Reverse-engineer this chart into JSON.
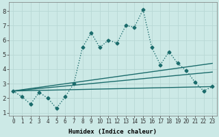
{
  "xlabel": "Humidex (Indice chaleur)",
  "ylabel": "",
  "xlim": [
    -0.5,
    23.5
  ],
  "ylim": [
    0.8,
    8.6
  ],
  "yticks": [
    1,
    2,
    3,
    4,
    5,
    6,
    7,
    8
  ],
  "xticks": [
    0,
    1,
    2,
    3,
    4,
    5,
    6,
    7,
    8,
    9,
    10,
    11,
    12,
    13,
    14,
    15,
    16,
    17,
    18,
    19,
    20,
    21,
    22,
    23
  ],
  "background_color": "#cce9e6",
  "line_color": "#1a6b6b",
  "grid_color": "#b8d8d5",
  "series": [
    {
      "x": [
        0,
        1,
        2,
        3,
        4,
        5,
        6,
        7,
        8,
        9,
        10,
        11,
        12,
        13,
        14,
        15,
        16,
        17,
        18,
        19,
        20,
        21,
        22,
        23
      ],
      "y": [
        2.5,
        2.1,
        1.6,
        2.4,
        2.0,
        1.3,
        2.1,
        3.0,
        5.5,
        6.5,
        5.5,
        6.0,
        5.8,
        7.0,
        6.9,
        8.1,
        5.5,
        4.3,
        5.2,
        4.4,
        3.9,
        3.1,
        2.5,
        2.8
      ],
      "style": "dotted",
      "marker": "D",
      "markersize": 2.5,
      "linewidth": 1.0
    },
    {
      "x": [
        0,
        23
      ],
      "y": [
        2.5,
        2.8
      ],
      "style": "solid",
      "marker": null,
      "markersize": 0,
      "linewidth": 1.0
    },
    {
      "x": [
        0,
        23
      ],
      "y": [
        2.5,
        3.8
      ],
      "style": "solid",
      "marker": null,
      "markersize": 0,
      "linewidth": 1.0
    },
    {
      "x": [
        0,
        23
      ],
      "y": [
        2.5,
        4.4
      ],
      "style": "solid",
      "marker": null,
      "markersize": 0,
      "linewidth": 1.0
    }
  ],
  "tick_fontsize": 5.5,
  "label_fontsize": 6.5,
  "xlabel_fontweight": "bold"
}
